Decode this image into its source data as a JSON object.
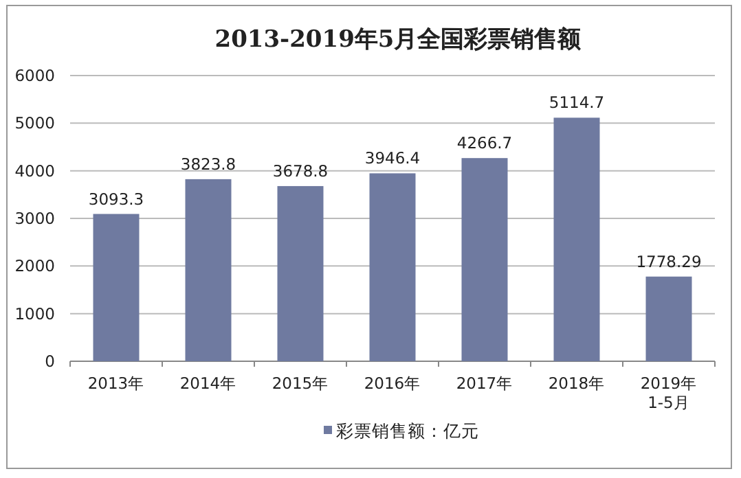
{
  "chart_data": {
    "type": "bar",
    "title": "2013-2019年5月全国彩票销售额",
    "categories": [
      "2013年",
      "2014年",
      "2015年",
      "2016年",
      "2017年",
      "2018年",
      "2019年1-5月"
    ],
    "series": [
      {
        "name": "彩票销售额：亿元",
        "color": "#6f7aa0",
        "values": [
          3093.3,
          3823.8,
          3678.8,
          3946.4,
          4266.7,
          5114.7,
          1778.29
        ]
      }
    ],
    "ylim": [
      0,
      6000
    ],
    "yticks": [
      0,
      1000,
      2000,
      3000,
      4000,
      5000,
      6000
    ],
    "grid": "y",
    "data_labels": true,
    "legend": "bottom"
  }
}
